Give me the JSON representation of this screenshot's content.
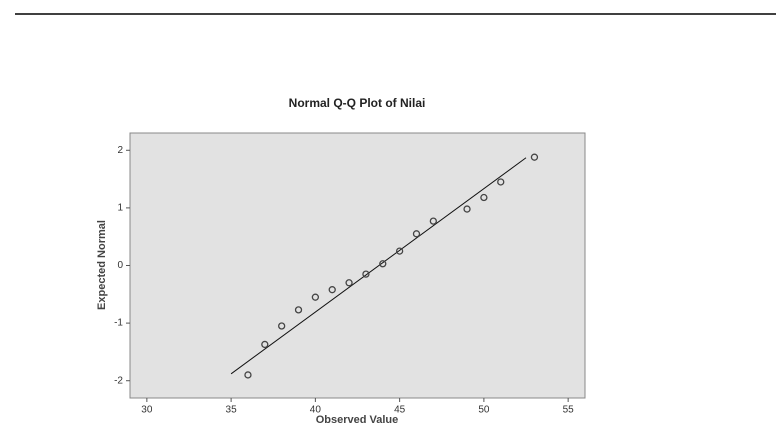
{
  "chart_data": {
    "type": "scatter",
    "title": "Normal Q-Q Plot of Nilai",
    "x_label": "Observed Value",
    "y_label": "Expected Normal",
    "x": [
      36,
      37,
      38,
      39,
      40,
      41,
      42,
      43,
      44,
      45,
      46,
      47,
      49,
      50,
      51,
      53
    ],
    "values": [
      -1.9,
      -1.37,
      -1.05,
      -0.77,
      -0.55,
      -0.42,
      -0.3,
      -0.15,
      0.03,
      0.25,
      0.55,
      0.77,
      0.98,
      1.18,
      1.45,
      1.88
    ],
    "color": "#444444",
    "reference_line": {
      "x": [
        35,
        52.5
      ],
      "y": [
        -1.88,
        1.87
      ],
      "color": "#111111"
    },
    "xlim": [
      29,
      56
    ],
    "ylim": [
      -2.3,
      2.3
    ],
    "xticks": [
      30,
      35,
      40,
      45,
      50,
      55
    ],
    "yticks": [
      -2,
      -1,
      0,
      1,
      2
    ],
    "background": "#e2e2e2"
  }
}
